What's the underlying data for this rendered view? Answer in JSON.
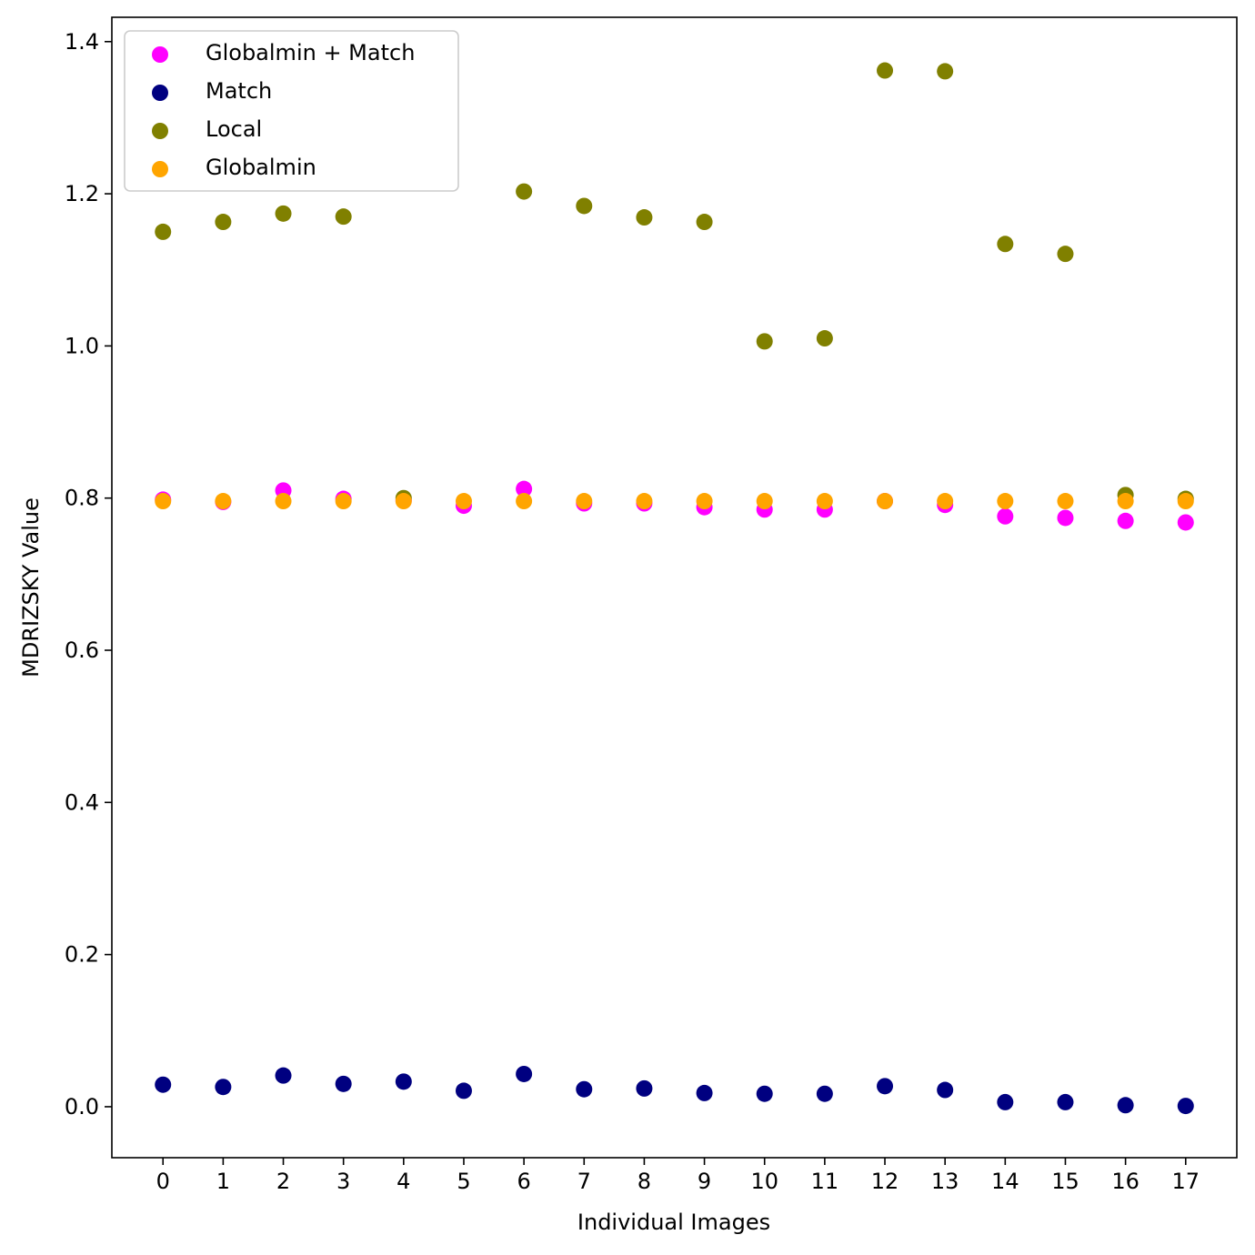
{
  "chart_data": {
    "type": "scatter",
    "title": "",
    "xlabel": "Individual Images",
    "ylabel": "MDRIZSKY Value",
    "xlim": [
      -0.85,
      17.85
    ],
    "ylim": [
      -0.067,
      1.432
    ],
    "xticks": [
      0,
      1,
      2,
      3,
      4,
      5,
      6,
      7,
      8,
      9,
      10,
      11,
      12,
      13,
      14,
      15,
      16,
      17
    ],
    "yticks": [
      0.0,
      0.2,
      0.4,
      0.6,
      0.8,
      1.0,
      1.2,
      1.4
    ],
    "ytick_labels": [
      "0.0",
      "0.2",
      "0.4",
      "0.6",
      "0.8",
      "1.0",
      "1.2",
      "1.4"
    ],
    "grid": false,
    "legend_position": "top-left",
    "x": [
      0,
      1,
      2,
      3,
      4,
      5,
      6,
      7,
      8,
      9,
      10,
      11,
      12,
      13,
      14,
      15,
      16,
      17
    ],
    "series": [
      {
        "name": "Globalmin + Match",
        "color": "#ff00ff",
        "values": [
          0.798,
          0.795,
          0.81,
          0.799,
          0.797,
          0.79,
          0.812,
          0.793,
          0.793,
          0.788,
          0.785,
          0.785,
          0.796,
          0.791,
          0.776,
          0.774,
          0.77,
          0.768
        ]
      },
      {
        "name": "Match",
        "color": "#000080",
        "values": [
          0.029,
          0.026,
          0.041,
          0.03,
          0.033,
          0.021,
          0.043,
          0.023,
          0.024,
          0.018,
          0.017,
          0.017,
          0.027,
          0.022,
          0.006,
          0.006,
          0.002,
          0.001
        ]
      },
      {
        "name": "Local",
        "color": "#808000",
        "values": [
          1.15,
          1.163,
          1.174,
          1.17,
          0.8,
          null,
          1.203,
          1.184,
          1.169,
          1.163,
          1.006,
          1.01,
          1.362,
          1.361,
          1.134,
          1.121,
          0.804,
          0.799
        ]
      },
      {
        "name": "Globalmin",
        "color": "#ffa500",
        "values": [
          0.796,
          0.796,
          0.796,
          0.796,
          0.796,
          0.796,
          0.796,
          0.796,
          0.796,
          0.796,
          0.796,
          0.796,
          0.796,
          0.796,
          0.796,
          0.796,
          0.796,
          0.796
        ]
      }
    ]
  }
}
